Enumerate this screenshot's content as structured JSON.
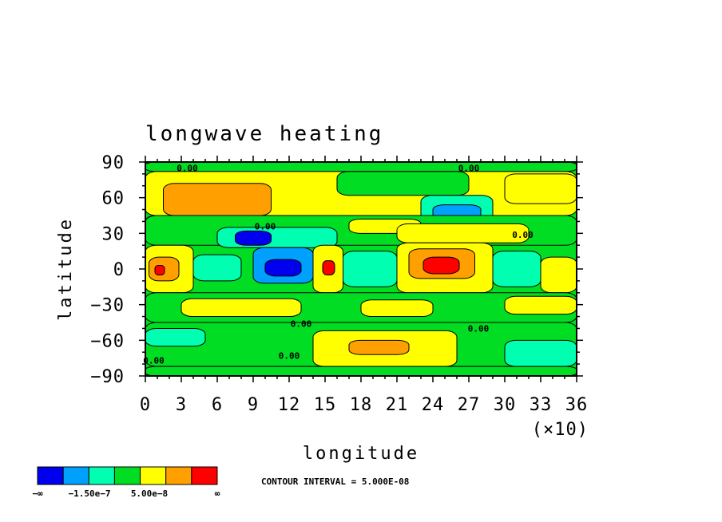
{
  "chart_data": {
    "type": "heatmap",
    "title": "longwave heating",
    "xlabel": "longitude",
    "ylabel": "latitude",
    "x_ticks": [
      "0",
      "3",
      "6",
      "9",
      "12",
      "15",
      "18",
      "21",
      "24",
      "27",
      "30",
      "33",
      "36"
    ],
    "x_multiplier": "(×10)",
    "y_ticks": [
      "90",
      "60",
      "30",
      "0",
      "−30",
      "−60",
      "−90"
    ],
    "xlim": [
      0,
      360
    ],
    "ylim": [
      -90,
      90
    ],
    "contour_interval_text": "CONTOUR INTERVAL = 5.000E-08",
    "contour_labels": [
      {
        "text": "0.00",
        "lon": 35,
        "lat": 85
      },
      {
        "text": "0.00",
        "lon": 100,
        "lat": 36
      },
      {
        "text": "0.00",
        "lon": 130,
        "lat": -46
      },
      {
        "text": "0.00",
        "lon": 120,
        "lat": -73
      },
      {
        "text": "0.00",
        "lon": 7,
        "lat": -77
      },
      {
        "text": "0.00",
        "lon": 270,
        "lat": 85
      },
      {
        "text": "0.00",
        "lon": 315,
        "lat": 29
      },
      {
        "text": "0.00",
        "lon": 278,
        "lat": -50
      }
    ],
    "colorbar": {
      "colors": [
        "#0000ee",
        "#00a0ff",
        "#00ffb0",
        "#00dd22",
        "#ffff00",
        "#ffa000",
        "#ff0000"
      ],
      "labels": [
        "−∞",
        "−1.50e−7",
        "5.00e−8",
        "∞"
      ]
    },
    "regions": [
      {
        "lon": 0,
        "lat": 82,
        "w": 360,
        "h": 8,
        "v": 0
      },
      {
        "lon": 0,
        "lat": 45,
        "w": 360,
        "h": 37,
        "v": 1
      },
      {
        "lon": 15,
        "lat": 45,
        "w": 90,
        "h": 27,
        "v": 2
      },
      {
        "lon": 0,
        "lat": 30,
        "w": 25,
        "h": 15,
        "v": 3
      },
      {
        "lon": 160,
        "lat": 62,
        "w": 110,
        "h": 20,
        "v": 0
      },
      {
        "lon": 230,
        "lat": 35,
        "w": 60,
        "h": 27,
        "v": -1
      },
      {
        "lon": 240,
        "lat": 42,
        "w": 40,
        "h": 12,
        "v": -2
      },
      {
        "lon": 300,
        "lat": 55,
        "w": 60,
        "h": 25,
        "v": 1
      },
      {
        "lon": 0,
        "lat": 20,
        "w": 360,
        "h": 25,
        "v": 0
      },
      {
        "lon": 60,
        "lat": 18,
        "w": 100,
        "h": 17,
        "v": -1
      },
      {
        "lon": 75,
        "lat": 20,
        "w": 30,
        "h": 12,
        "v": -3
      },
      {
        "lon": 170,
        "lat": 30,
        "w": 60,
        "h": 12,
        "v": 1
      },
      {
        "lon": 210,
        "lat": 22,
        "w": 110,
        "h": 16,
        "v": 1
      },
      {
        "lon": 0,
        "lat": -20,
        "w": 40,
        "h": 40,
        "v": 1
      },
      {
        "lon": 3,
        "lat": -10,
        "w": 25,
        "h": 20,
        "v": 2
      },
      {
        "lon": 8,
        "lat": -5,
        "w": 8,
        "h": 8,
        "v": 3
      },
      {
        "lon": 40,
        "lat": -10,
        "w": 40,
        "h": 22,
        "v": -1
      },
      {
        "lon": 90,
        "lat": -12,
        "w": 50,
        "h": 30,
        "v": -2
      },
      {
        "lon": 100,
        "lat": -6,
        "w": 30,
        "h": 14,
        "v": -3
      },
      {
        "lon": 140,
        "lat": -20,
        "w": 25,
        "h": 40,
        "v": 1
      },
      {
        "lon": 148,
        "lat": -5,
        "w": 10,
        "h": 12,
        "v": 3
      },
      {
        "lon": 165,
        "lat": -15,
        "w": 45,
        "h": 30,
        "v": -1
      },
      {
        "lon": 210,
        "lat": -20,
        "w": 80,
        "h": 42,
        "v": 1
      },
      {
        "lon": 220,
        "lat": -8,
        "w": 55,
        "h": 25,
        "v": 2
      },
      {
        "lon": 232,
        "lat": -4,
        "w": 30,
        "h": 14,
        "v": 3
      },
      {
        "lon": 290,
        "lat": -15,
        "w": 40,
        "h": 30,
        "v": -1
      },
      {
        "lon": 330,
        "lat": -20,
        "w": 30,
        "h": 30,
        "v": 1
      },
      {
        "lon": 0,
        "lat": -45,
        "w": 360,
        "h": 25,
        "v": 0
      },
      {
        "lon": 30,
        "lat": -40,
        "w": 100,
        "h": 15,
        "v": 1
      },
      {
        "lon": 180,
        "lat": -40,
        "w": 60,
        "h": 14,
        "v": 1
      },
      {
        "lon": 300,
        "lat": -38,
        "w": 60,
        "h": 15,
        "v": 1
      },
      {
        "lon": 0,
        "lat": -82,
        "w": 360,
        "h": 37,
        "v": 0
      },
      {
        "lon": 0,
        "lat": -65,
        "w": 50,
        "h": 15,
        "v": -1
      },
      {
        "lon": 140,
        "lat": -82,
        "w": 120,
        "h": 30,
        "v": 1
      },
      {
        "lon": 170,
        "lat": -72,
        "w": 50,
        "h": 12,
        "v": 2
      },
      {
        "lon": 300,
        "lat": -82,
        "w": 60,
        "h": 22,
        "v": -1
      },
      {
        "lon": 0,
        "lat": -90,
        "w": 360,
        "h": 8,
        "v": 0
      }
    ]
  }
}
